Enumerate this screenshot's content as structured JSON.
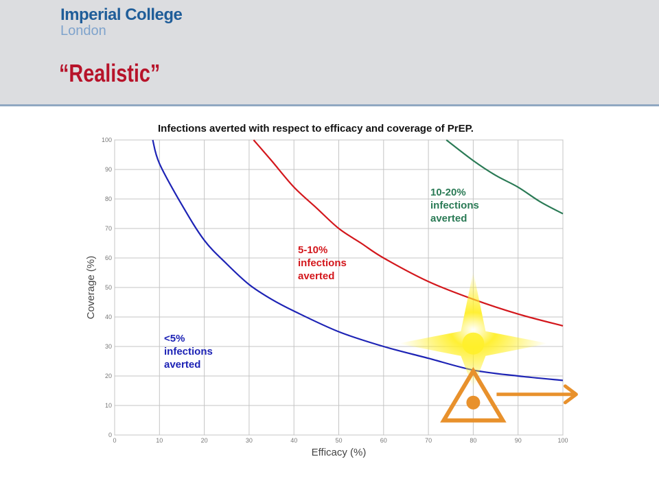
{
  "header": {
    "logo_line1": "Imperial College",
    "logo_line2": "London",
    "slide_title": "“Realistic”"
  },
  "colors": {
    "header_bg": "#dcdde0",
    "title_red": "#b7132a",
    "curve_blue": "#1d23b5",
    "curve_red": "#d3171c",
    "curve_green": "#2a7a55",
    "star_yellow": "#ffef2a",
    "marker_orange": "#e8912c"
  },
  "chart_data": {
    "type": "line",
    "title": "Infections averted with respect to efficacy and coverage of PrEP.",
    "xlabel": "Efficacy (%)",
    "ylabel": "Coverage (%)",
    "xlim": [
      0,
      100
    ],
    "ylim": [
      0,
      100
    ],
    "xticks": [
      0,
      10,
      20,
      30,
      40,
      50,
      60,
      70,
      80,
      90,
      100
    ],
    "yticks": [
      0,
      10,
      20,
      30,
      40,
      50,
      60,
      70,
      80,
      90,
      100
    ],
    "grid": true,
    "series": [
      {
        "key": "blue",
        "x": [
          8.5,
          10,
          15,
          20,
          25,
          30,
          35,
          40,
          50,
          60,
          70,
          80,
          90,
          100
        ],
        "y": [
          100,
          92,
          78,
          66,
          58,
          51,
          46,
          42,
          35,
          30,
          26,
          22,
          20,
          18.5
        ]
      },
      {
        "key": "red",
        "x": [
          31,
          35,
          40,
          45,
          50,
          55,
          60,
          70,
          80,
          90,
          100
        ],
        "y": [
          100,
          93,
          84,
          77,
          70,
          65,
          60,
          52,
          46,
          41,
          37
        ]
      },
      {
        "key": "green",
        "x": [
          74,
          80,
          85,
          90,
          95,
          100
        ],
        "y": [
          100,
          93,
          88,
          84,
          79,
          75
        ]
      }
    ],
    "annotations": [
      {
        "key": "blue",
        "text": "<5%\ninfections\naverted"
      },
      {
        "key": "red",
        "text": "5-10%\ninfections\naverted"
      },
      {
        "key": "green",
        "text": "10-20%\ninfections\naverted"
      }
    ],
    "highlight_point": {
      "x": 80,
      "y": 31
    }
  }
}
